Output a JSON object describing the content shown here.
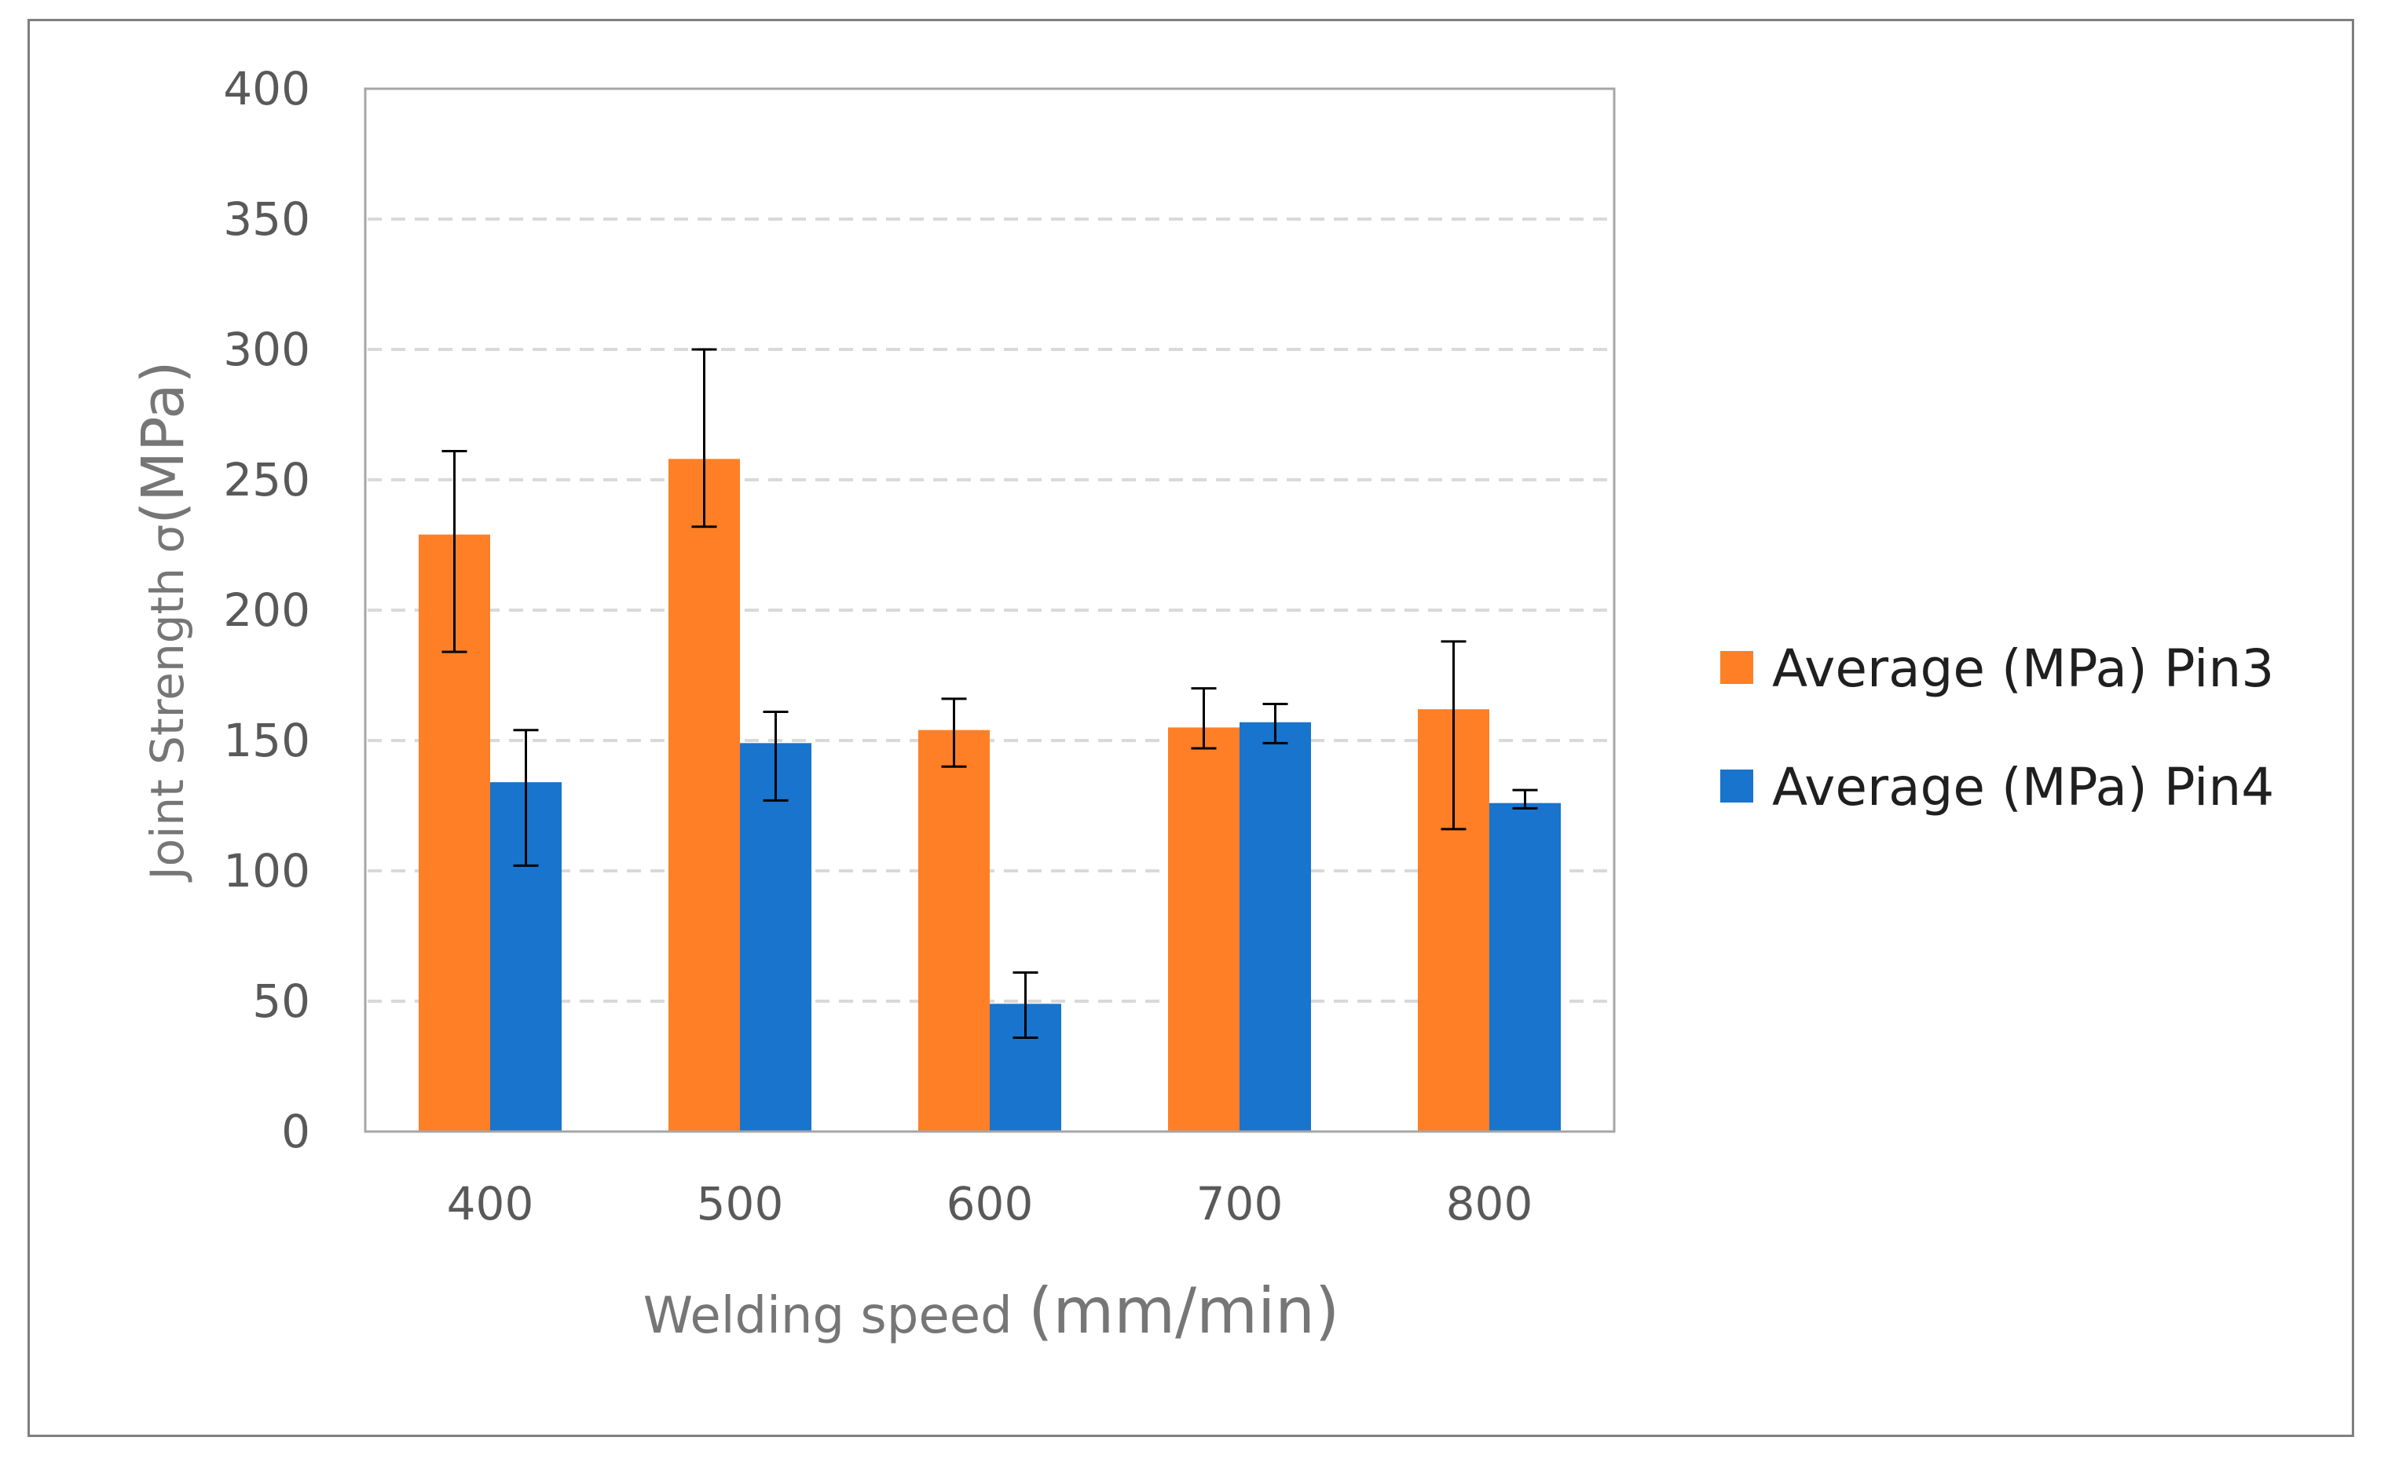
{
  "chart_data": {
    "type": "bar",
    "title": "",
    "xlabel": "Welding speed",
    "xlabel_unit": "(mm/min)",
    "ylabel": "Joint Strength σ",
    "ylabel_unit": "(MPa)",
    "categories": [
      "400",
      "500",
      "600",
      "700",
      "800"
    ],
    "ylim": [
      0,
      400
    ],
    "yticks": [
      0,
      50,
      100,
      150,
      200,
      250,
      300,
      350,
      400
    ],
    "grid": "horizontal-dashed",
    "legend_position": "right",
    "series": [
      {
        "name": "Average (MPa) Pin3",
        "color": "#FF7F27",
        "values": [
          229,
          258,
          154,
          155,
          162
        ],
        "error_low": [
          184,
          232,
          140,
          147,
          116
        ],
        "error_high": [
          261,
          300,
          166,
          170,
          188
        ]
      },
      {
        "name": "Average (MPa) Pin4",
        "color": "#1874CD",
        "values": [
          134,
          149,
          49,
          157,
          126
        ],
        "error_low": [
          102,
          127,
          36,
          149,
          124
        ],
        "error_high": [
          154,
          161,
          61,
          164,
          131
        ]
      }
    ]
  }
}
